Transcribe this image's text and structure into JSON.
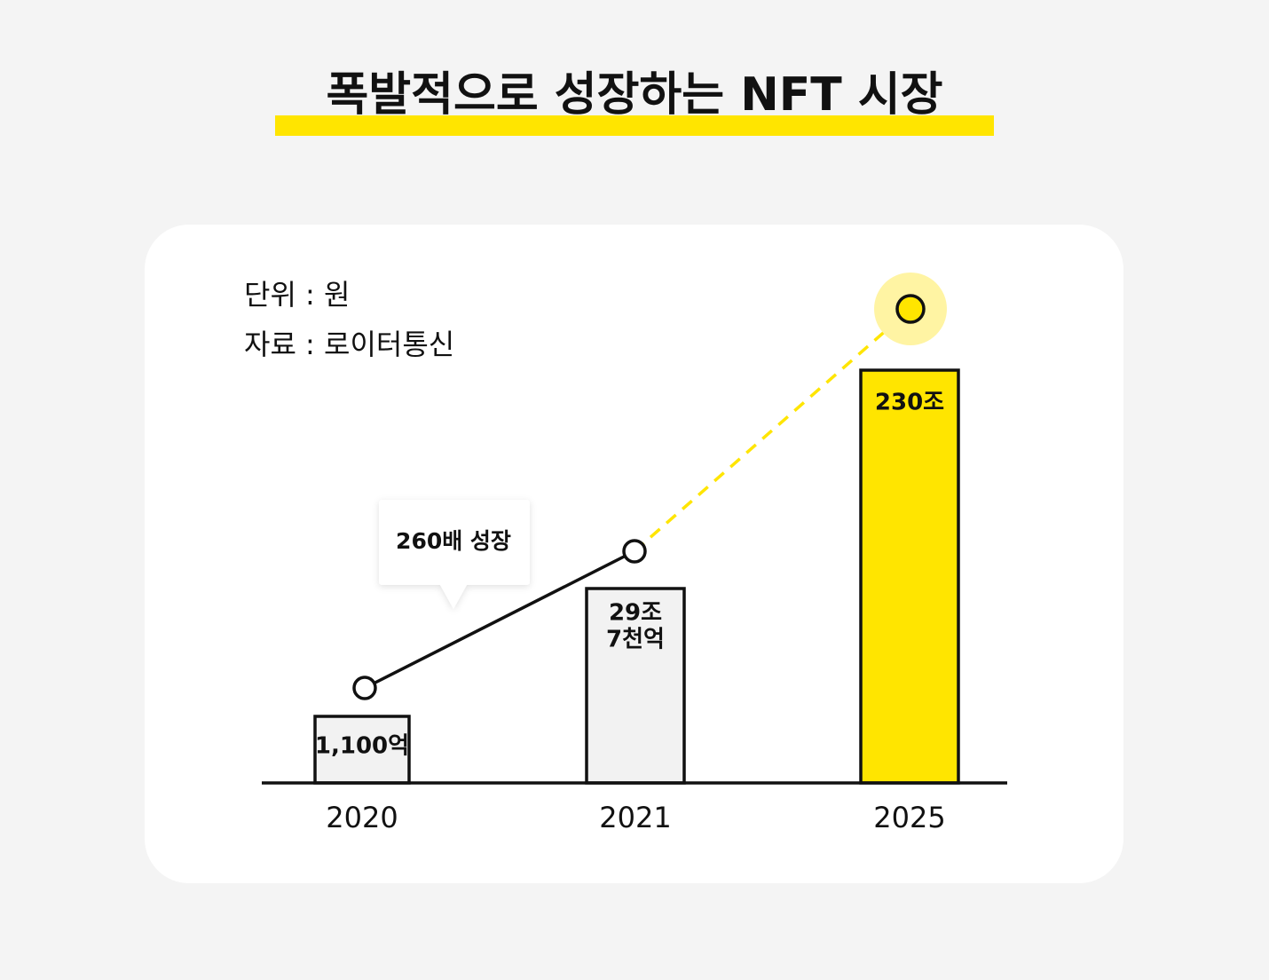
{
  "title": "폭발적으로 성장하는 NFT 시장",
  "notes": [
    "단위 : 원",
    "자료 : 로이터통신"
  ],
  "callout": "260배 성장",
  "bars": [
    {
      "year": "2020",
      "label": [
        "1,100억"
      ]
    },
    {
      "year": "2021",
      "label": [
        "29조",
        "7천억"
      ]
    },
    {
      "year": "2025",
      "label": [
        "230조"
      ]
    }
  ]
}
